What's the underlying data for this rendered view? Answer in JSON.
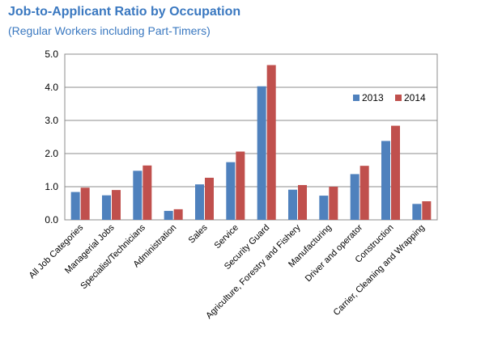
{
  "title": "Job-to-Applicant Ratio by Occupation",
  "subtitle": "(Regular Workers including Part-Timers)",
  "colors": {
    "s2013": "#4f81bd",
    "s2014": "#c0504d",
    "grid": "#8c8c8c"
  },
  "chart_data": {
    "type": "bar",
    "categories": [
      "All Job Categories",
      "Managerial Jobs",
      "Specialist/Technicians",
      "Administration",
      "Sales",
      "Service",
      "Security Guard",
      "Agriculture, Forestry and Fishery",
      "Manufacturing",
      "Driver and operator",
      "Construction",
      "Carrier, Cleaning and Wrapping"
    ],
    "series": [
      {
        "name": "2013",
        "values": [
          0.84,
          0.74,
          1.48,
          0.27,
          1.07,
          1.74,
          4.03,
          0.91,
          0.73,
          1.38,
          2.38,
          0.48
        ]
      },
      {
        "name": "2014",
        "values": [
          0.97,
          0.9,
          1.64,
          0.32,
          1.27,
          2.06,
          4.67,
          1.05,
          1.0,
          1.63,
          2.84,
          0.56
        ]
      }
    ],
    "yticks": [
      "0.0",
      "1.0",
      "2.0",
      "3.0",
      "4.0",
      "5.0"
    ],
    "ylim": [
      0,
      5
    ],
    "grid": true,
    "legend": "top-right"
  }
}
